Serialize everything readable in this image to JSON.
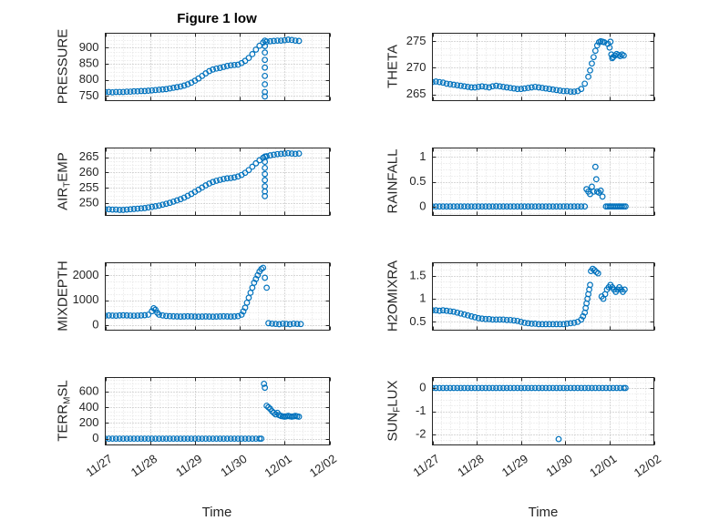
{
  "figure": {
    "title": "Figure 1 low",
    "marker_color": "#0072BD",
    "axis_color": "#262626",
    "grid_color": "#b0b0b0",
    "minor_grid_color": "#e2e2e2",
    "background": "#ffffff"
  },
  "time_axis": {
    "label": "Time",
    "xlim": [
      0,
      5
    ],
    "ticks": [
      0,
      1,
      2,
      3,
      4,
      5
    ],
    "tick_labels": [
      "11/27",
      "11/28",
      "11/29",
      "11/30",
      "12/01",
      "12/02"
    ]
  },
  "chart_data": [
    {
      "type": "scatter",
      "name": "pressure",
      "ylabel_pre": "PRESSURE",
      "ylabel_sub": "",
      "ylabel_post": "",
      "yticks": [
        750,
        800,
        850,
        900
      ],
      "ytick_labels": [
        "750",
        "800",
        "850",
        "900"
      ],
      "ylim": [
        735,
        945
      ],
      "x": [
        0,
        0.08,
        0.16,
        0.24,
        0.32,
        0.4,
        0.48,
        0.56,
        0.64,
        0.72,
        0.8,
        0.88,
        0.96,
        1.04,
        1.12,
        1.2,
        1.28,
        1.36,
        1.44,
        1.52,
        1.6,
        1.68,
        1.76,
        1.84,
        1.92,
        2,
        2.08,
        2.16,
        2.24,
        2.32,
        2.4,
        2.48,
        2.56,
        2.64,
        2.72,
        2.8,
        2.88,
        2.96,
        3.04,
        3.12,
        3.2,
        3.28,
        3.36,
        3.44,
        3.52,
        3.56,
        3.56,
        3.56,
        3.56,
        3.56,
        3.56,
        3.56,
        3.56,
        3.56,
        3.6,
        3.68,
        3.76,
        3.84,
        3.92,
        4,
        4.08,
        4.16,
        4.24,
        4.32
      ],
      "y": [
        762,
        762,
        761,
        762,
        762,
        762,
        763,
        763,
        764,
        764,
        765,
        765,
        766,
        767,
        768,
        769,
        770,
        771,
        773,
        775,
        777,
        779,
        782,
        786,
        791,
        797,
        804,
        812,
        820,
        827,
        832,
        835,
        837,
        840,
        843,
        845,
        846,
        847,
        852,
        859,
        868,
        880,
        894,
        906,
        916,
        922,
        905,
        885,
        862,
        838,
        812,
        786,
        762,
        748,
        919,
        920,
        921,
        922,
        922,
        923,
        925,
        924,
        922,
        921
      ]
    },
    {
      "type": "scatter",
      "name": "theta",
      "ylabel_pre": "THETA",
      "ylabel_sub": "",
      "ylabel_post": "",
      "yticks": [
        265,
        270,
        275
      ],
      "ytick_labels": [
        "265",
        "270",
        "275"
      ],
      "ylim": [
        263.8,
        276.5
      ],
      "x": [
        0,
        0.08,
        0.16,
        0.24,
        0.32,
        0.4,
        0.48,
        0.56,
        0.64,
        0.72,
        0.8,
        0.88,
        0.96,
        1.04,
        1.12,
        1.2,
        1.28,
        1.36,
        1.44,
        1.52,
        1.6,
        1.68,
        1.76,
        1.84,
        1.92,
        2,
        2.08,
        2.16,
        2.24,
        2.32,
        2.4,
        2.48,
        2.56,
        2.64,
        2.72,
        2.8,
        2.88,
        2.96,
        3.04,
        3.12,
        3.2,
        3.28,
        3.36,
        3.44,
        3.52,
        3.56,
        3.6,
        3.64,
        3.68,
        3.72,
        3.76,
        3.8,
        3.84,
        3.88,
        3.96,
        4,
        4.02,
        4.04,
        4.06,
        4.08,
        4.12,
        4.16,
        4.2,
        4.24,
        4.28,
        4.32
      ],
      "y": [
        267.3,
        267.4,
        267.3,
        267.2,
        267,
        266.9,
        266.8,
        266.7,
        266.6,
        266.5,
        266.4,
        266.3,
        266.3,
        266.4,
        266.5,
        266.4,
        266.3,
        266.5,
        266.6,
        266.5,
        266.4,
        266.3,
        266.2,
        266.1,
        266,
        266,
        266.1,
        266.2,
        266.3,
        266.4,
        266.3,
        266.2,
        266.1,
        266,
        265.9,
        265.8,
        265.7,
        265.6,
        265.6,
        265.5,
        265.5,
        265.6,
        266,
        267,
        268.3,
        269.5,
        270.8,
        272,
        273.2,
        274.2,
        274.8,
        275,
        274.9,
        274.8,
        274.5,
        273.8,
        274.9,
        272.5,
        271.8,
        272,
        272.3,
        272.6,
        272.4,
        272.2,
        272.5,
        272.3
      ]
    },
    {
      "type": "scatter",
      "name": "airtemp",
      "ylabel_pre": "AIR",
      "ylabel_sub": "T",
      "ylabel_post": "EMP",
      "yticks": [
        250,
        255,
        260,
        265
      ],
      "ytick_labels": [
        "250",
        "255",
        "260",
        "265"
      ],
      "ylim": [
        246,
        268
      ],
      "x": [
        0,
        0.08,
        0.16,
        0.24,
        0.32,
        0.4,
        0.48,
        0.56,
        0.64,
        0.72,
        0.8,
        0.88,
        0.96,
        1.04,
        1.12,
        1.2,
        1.28,
        1.36,
        1.44,
        1.52,
        1.6,
        1.68,
        1.76,
        1.84,
        1.92,
        2,
        2.08,
        2.16,
        2.24,
        2.32,
        2.4,
        2.48,
        2.56,
        2.64,
        2.72,
        2.8,
        2.88,
        2.96,
        3.04,
        3.12,
        3.2,
        3.28,
        3.36,
        3.44,
        3.52,
        3.56,
        3.56,
        3.56,
        3.56,
        3.56,
        3.56,
        3.56,
        3.56,
        3.6,
        3.68,
        3.76,
        3.84,
        3.92,
        4,
        4.08,
        4.16,
        4.24,
        4.32
      ],
      "y": [
        248,
        248,
        247.9,
        247.9,
        247.8,
        247.8,
        247.9,
        248,
        248.1,
        248.2,
        248.3,
        248.4,
        248.6,
        248.8,
        249,
        249.2,
        249.5,
        249.8,
        250.1,
        250.5,
        250.9,
        251.3,
        251.8,
        252.4,
        253,
        253.7,
        254.4,
        255.1,
        255.8,
        256.4,
        256.9,
        257.3,
        257.6,
        257.9,
        258.1,
        258.2,
        258.4,
        258.7,
        259.2,
        259.9,
        260.8,
        261.9,
        263,
        264,
        264.8,
        265.2,
        263.5,
        261.5,
        259.5,
        257.5,
        255.5,
        253.8,
        252.3,
        265.3,
        265.6,
        265.8,
        266,
        266.1,
        266.2,
        266.3,
        266.2,
        266.1,
        266.2
      ]
    },
    {
      "type": "scatter",
      "name": "rainfall",
      "ylabel_pre": "RAINFALL",
      "ylabel_sub": "",
      "ylabel_post": "",
      "yticks": [
        0,
        0.5,
        1
      ],
      "ytick_labels": [
        "0",
        "0.5",
        "1"
      ],
      "ylim": [
        -0.18,
        1.18
      ],
      "x": [
        0,
        0.08,
        0.16,
        0.24,
        0.32,
        0.4,
        0.48,
        0.56,
        0.64,
        0.72,
        0.8,
        0.88,
        0.96,
        1.04,
        1.12,
        1.2,
        1.28,
        1.36,
        1.44,
        1.52,
        1.6,
        1.68,
        1.76,
        1.84,
        1.92,
        2,
        2.08,
        2.16,
        2.24,
        2.32,
        2.4,
        2.48,
        2.56,
        2.64,
        2.72,
        2.8,
        2.88,
        2.96,
        3.04,
        3.12,
        3.2,
        3.28,
        3.36,
        3.44,
        3.48,
        3.52,
        3.56,
        3.6,
        3.64,
        3.68,
        3.7,
        3.72,
        3.76,
        3.8,
        3.84,
        3.92,
        3.96,
        4,
        4.04,
        4.08,
        4.12,
        4.16,
        4.2,
        4.24,
        4.28,
        4.32,
        4.36
      ],
      "y": [
        0,
        0,
        0,
        0,
        0,
        0,
        0,
        0,
        0,
        0,
        0,
        0,
        0,
        0,
        0,
        0,
        0,
        0,
        0,
        0,
        0,
        0,
        0,
        0,
        0,
        0,
        0,
        0,
        0,
        0,
        0,
        0,
        0,
        0,
        0,
        0,
        0,
        0,
        0,
        0,
        0,
        0,
        0,
        0,
        0.35,
        0.3,
        0.25,
        0.4,
        0.3,
        0.8,
        0.55,
        0.3,
        0.28,
        0.32,
        0.2,
        0,
        0,
        0,
        0,
        0,
        0,
        0,
        0,
        0,
        0,
        0,
        0
      ]
    },
    {
      "type": "scatter",
      "name": "mixdepth",
      "ylabel_pre": "MIXDEPTH",
      "ylabel_sub": "",
      "ylabel_post": "",
      "yticks": [
        0,
        1000,
        2000
      ],
      "ytick_labels": [
        "0",
        "1000",
        "2000"
      ],
      "ylim": [
        -200,
        2500
      ],
      "x": [
        0,
        0.08,
        0.16,
        0.24,
        0.32,
        0.4,
        0.48,
        0.56,
        0.64,
        0.72,
        0.8,
        0.88,
        0.96,
        1.04,
        1.08,
        1.12,
        1.16,
        1.2,
        1.28,
        1.36,
        1.44,
        1.52,
        1.6,
        1.68,
        1.76,
        1.84,
        1.92,
        2,
        2.08,
        2.16,
        2.24,
        2.32,
        2.4,
        2.48,
        2.56,
        2.64,
        2.72,
        2.8,
        2.88,
        2.96,
        3.04,
        3.08,
        3.12,
        3.16,
        3.2,
        3.24,
        3.28,
        3.32,
        3.36,
        3.4,
        3.44,
        3.48,
        3.52,
        3.56,
        3.6,
        3.64,
        3.72,
        3.8,
        3.88,
        3.96,
        4.04,
        4.12,
        4.2,
        4.28,
        4.36
      ],
      "y": [
        380,
        390,
        385,
        380,
        390,
        395,
        390,
        385,
        380,
        385,
        390,
        400,
        420,
        560,
        680,
        620,
        500,
        420,
        390,
        370,
        360,
        355,
        350,
        345,
        350,
        355,
        350,
        345,
        340,
        345,
        350,
        345,
        340,
        345,
        350,
        355,
        350,
        345,
        350,
        360,
        420,
        550,
        700,
        900,
        1100,
        1300,
        1500,
        1700,
        1850,
        2000,
        2150,
        2250,
        2300,
        1900,
        1500,
        80,
        60,
        50,
        40,
        60,
        50,
        40,
        60,
        50,
        45
      ]
    },
    {
      "type": "scatter",
      "name": "h2omixra",
      "ylabel_pre": "H2OMIXRA",
      "ylabel_sub": "",
      "ylabel_post": "",
      "yticks": [
        0.5,
        1,
        1.5
      ],
      "ytick_labels": [
        "0.5",
        "1",
        "1.5"
      ],
      "ylim": [
        0.32,
        1.78
      ],
      "x": [
        0,
        0.08,
        0.16,
        0.24,
        0.32,
        0.4,
        0.48,
        0.56,
        0.64,
        0.72,
        0.8,
        0.88,
        0.96,
        1.04,
        1.12,
        1.2,
        1.28,
        1.36,
        1.44,
        1.52,
        1.6,
        1.68,
        1.76,
        1.84,
        1.92,
        2,
        2.08,
        2.16,
        2.24,
        2.32,
        2.4,
        2.48,
        2.56,
        2.64,
        2.72,
        2.8,
        2.88,
        2.96,
        3.04,
        3.12,
        3.2,
        3.28,
        3.36,
        3.4,
        3.44,
        3.46,
        3.48,
        3.5,
        3.52,
        3.54,
        3.56,
        3.58,
        3.62,
        3.66,
        3.7,
        3.74,
        3.82,
        3.86,
        3.9,
        3.94,
        3.98,
        4.02,
        4.06,
        4.1,
        4.14,
        4.18,
        4.22,
        4.26,
        4.3,
        4.34
      ],
      "y": [
        0.75,
        0.75,
        0.74,
        0.75,
        0.74,
        0.73,
        0.72,
        0.7,
        0.68,
        0.66,
        0.64,
        0.62,
        0.6,
        0.58,
        0.57,
        0.56,
        0.56,
        0.55,
        0.55,
        0.55,
        0.55,
        0.54,
        0.54,
        0.53,
        0.52,
        0.5,
        0.48,
        0.47,
        0.46,
        0.46,
        0.45,
        0.45,
        0.45,
        0.45,
        0.45,
        0.45,
        0.45,
        0.45,
        0.46,
        0.47,
        0.48,
        0.5,
        0.55,
        0.62,
        0.7,
        0.8,
        0.9,
        1,
        1.1,
        1.2,
        1.3,
        1.6,
        1.65,
        1.62,
        1.58,
        1.55,
        1.05,
        1,
        1.1,
        1.2,
        1.25,
        1.3,
        1.25,
        1.2,
        1.15,
        1.2,
        1.25,
        1.2,
        1.15,
        1.2
      ]
    },
    {
      "type": "scatter",
      "name": "terrmsl",
      "ylabel_pre": "TERR",
      "ylabel_sub": "M",
      "ylabel_post": "SL",
      "yticks": [
        0,
        200,
        400,
        600
      ],
      "ytick_labels": [
        "0",
        "200",
        "400",
        "600"
      ],
      "ylim": [
        -80,
        780
      ],
      "x": [
        0,
        0.08,
        0.16,
        0.24,
        0.32,
        0.4,
        0.48,
        0.56,
        0.64,
        0.72,
        0.8,
        0.88,
        0.96,
        1.04,
        1.12,
        1.2,
        1.28,
        1.36,
        1.44,
        1.52,
        1.6,
        1.68,
        1.76,
        1.84,
        1.92,
        2,
        2.08,
        2.16,
        2.24,
        2.32,
        2.4,
        2.48,
        2.56,
        2.64,
        2.72,
        2.8,
        2.88,
        2.96,
        3.04,
        3.12,
        3.2,
        3.28,
        3.36,
        3.44,
        3.48,
        3.54,
        3.56,
        3.6,
        3.64,
        3.68,
        3.72,
        3.76,
        3.8,
        3.84,
        3.88,
        3.92,
        3.96,
        4,
        4.04,
        4.08,
        4.12,
        4.16,
        4.2,
        4.24,
        4.28,
        4.32
      ],
      "y": [
        0,
        0,
        0,
        0,
        0,
        0,
        0,
        0,
        0,
        0,
        0,
        0,
        0,
        0,
        0,
        0,
        0,
        0,
        0,
        0,
        0,
        0,
        0,
        0,
        0,
        0,
        0,
        0,
        0,
        0,
        0,
        0,
        0,
        0,
        0,
        0,
        0,
        0,
        0,
        0,
        0,
        0,
        0,
        0,
        0,
        700,
        650,
        420,
        400,
        380,
        350,
        330,
        310,
        330,
        300,
        290,
        285,
        280,
        285,
        290,
        285,
        280,
        285,
        290,
        285,
        280
      ]
    },
    {
      "type": "scatter",
      "name": "sunflux",
      "ylabel_pre": "SUN",
      "ylabel_sub": "F",
      "ylabel_post": "LUX",
      "yticks": [
        -2,
        -1,
        0
      ],
      "ytick_labels": [
        "-2",
        "-1",
        "0"
      ],
      "ylim": [
        -2.45,
        0.45
      ],
      "x": [
        0,
        0.08,
        0.16,
        0.24,
        0.32,
        0.4,
        0.48,
        0.56,
        0.64,
        0.72,
        0.8,
        0.88,
        0.96,
        1.04,
        1.12,
        1.2,
        1.28,
        1.36,
        1.44,
        1.52,
        1.6,
        1.68,
        1.76,
        1.84,
        1.92,
        2,
        2.08,
        2.16,
        2.24,
        2.32,
        2.4,
        2.48,
        2.56,
        2.64,
        2.72,
        2.8,
        2.88,
        2.96,
        3.04,
        3.12,
        3.2,
        3.28,
        3.36,
        3.44,
        3.52,
        3.6,
        3.68,
        3.76,
        3.84,
        3.92,
        4,
        4.08,
        4.16,
        4.24,
        4.32,
        4.36,
        2.85
      ],
      "y": [
        0,
        0,
        0,
        0,
        0,
        0,
        0,
        0,
        0,
        0,
        0,
        0,
        0,
        0,
        0,
        0,
        0,
        0,
        0,
        0,
        0,
        0,
        0,
        0,
        0,
        0,
        0,
        0,
        0,
        0,
        0,
        0,
        0,
        0,
        0,
        0,
        0,
        0,
        0,
        0,
        0,
        0,
        0,
        0,
        0,
        0,
        0,
        0,
        0,
        0,
        0,
        0,
        0,
        0,
        0,
        0,
        -2.2
      ]
    }
  ]
}
